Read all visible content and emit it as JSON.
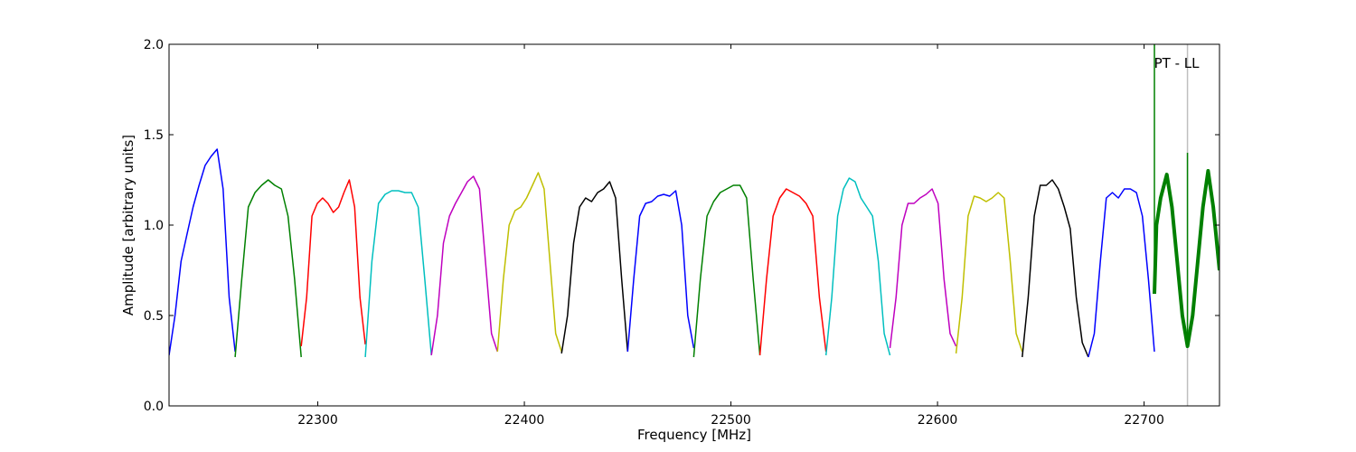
{
  "chart_data": {
    "type": "line",
    "title": "",
    "xlabel": "Frequency [MHz]",
    "ylabel": "Amplitude [arbitrary units]",
    "xlim": [
      22228,
      22736.5
    ],
    "ylim": [
      0,
      2.0
    ],
    "xticks": [
      22300,
      22400,
      22500,
      22600,
      22700
    ],
    "xtick_labels": [
      "22300",
      "22400",
      "22500",
      "22600",
      "22700"
    ],
    "yticks": [
      0,
      0.5,
      1.0,
      1.5,
      2.0
    ],
    "ytick_labels": [
      "0.0",
      "0.5",
      "1.0",
      "1.5",
      "2.0"
    ],
    "grid": false,
    "annotation": {
      "text": "PT - LL",
      "x": 22721
    },
    "bands": [
      {
        "start": 22228,
        "end": 22260,
        "color": "#0000ff",
        "values": [
          0.28,
          0.5,
          0.8,
          0.95,
          1.1,
          1.22,
          1.33,
          1.38,
          1.42,
          1.2,
          0.6,
          0.3
        ]
      },
      {
        "start": 22260,
        "end": 22292,
        "color": "#008000",
        "values": [
          0.27,
          0.7,
          1.1,
          1.18,
          1.22,
          1.25,
          1.22,
          1.2,
          1.05,
          0.7,
          0.27
        ]
      },
      {
        "start": 22292,
        "end": 22323,
        "color": "#ff0000",
        "values": [
          0.33,
          0.6,
          1.05,
          1.12,
          1.15,
          1.12,
          1.07,
          1.1,
          1.18,
          1.25,
          1.1,
          0.6,
          0.34
        ]
      },
      {
        "start": 22323,
        "end": 22355,
        "color": "#00bfbf",
        "values": [
          0.27,
          0.8,
          1.12,
          1.17,
          1.19,
          1.19,
          1.18,
          1.18,
          1.1,
          0.7,
          0.28
        ]
      },
      {
        "start": 22355,
        "end": 22387,
        "color": "#bf00bf",
        "values": [
          0.28,
          0.5,
          0.9,
          1.05,
          1.12,
          1.18,
          1.24,
          1.27,
          1.2,
          0.8,
          0.4,
          0.3
        ]
      },
      {
        "start": 22387,
        "end": 22418,
        "color": "#bfbf00",
        "values": [
          0.3,
          0.7,
          1.0,
          1.08,
          1.1,
          1.15,
          1.22,
          1.29,
          1.2,
          0.8,
          0.4,
          0.3
        ]
      },
      {
        "start": 22418,
        "end": 22450,
        "color": "#000000",
        "values": [
          0.29,
          0.5,
          0.9,
          1.1,
          1.15,
          1.13,
          1.18,
          1.2,
          1.24,
          1.15,
          0.7,
          0.3
        ]
      },
      {
        "start": 22450,
        "end": 22482,
        "color": "#0000ff",
        "values": [
          0.3,
          0.7,
          1.05,
          1.12,
          1.13,
          1.16,
          1.17,
          1.16,
          1.19,
          1.0,
          0.5,
          0.32
        ]
      },
      {
        "start": 22482,
        "end": 22514,
        "color": "#008000",
        "values": [
          0.27,
          0.7,
          1.05,
          1.13,
          1.18,
          1.2,
          1.22,
          1.22,
          1.15,
          0.7,
          0.28
        ]
      },
      {
        "start": 22514,
        "end": 22546,
        "color": "#ff0000",
        "values": [
          0.28,
          0.7,
          1.05,
          1.15,
          1.2,
          1.18,
          1.16,
          1.12,
          1.05,
          0.6,
          0.3
        ]
      },
      {
        "start": 22546,
        "end": 22577,
        "color": "#00bfbf",
        "values": [
          0.28,
          0.6,
          1.05,
          1.2,
          1.26,
          1.24,
          1.15,
          1.1,
          1.05,
          0.8,
          0.4,
          0.28
        ]
      },
      {
        "start": 22577,
        "end": 22609,
        "color": "#bf00bf",
        "values": [
          0.32,
          0.6,
          1.0,
          1.12,
          1.12,
          1.15,
          1.17,
          1.2,
          1.12,
          0.7,
          0.4,
          0.33
        ]
      },
      {
        "start": 22609,
        "end": 22641,
        "color": "#bfbf00",
        "values": [
          0.29,
          0.6,
          1.05,
          1.16,
          1.15,
          1.13,
          1.15,
          1.18,
          1.15,
          0.8,
          0.4,
          0.3
        ]
      },
      {
        "start": 22641,
        "end": 22673,
        "color": "#000000",
        "values": [
          0.27,
          0.6,
          1.05,
          1.22,
          1.22,
          1.25,
          1.2,
          1.1,
          0.98,
          0.6,
          0.35,
          0.27
        ]
      },
      {
        "start": 22673,
        "end": 22705,
        "color": "#0000ff",
        "values": [
          0.27,
          0.4,
          0.8,
          1.15,
          1.18,
          1.15,
          1.2,
          1.2,
          1.18,
          1.05,
          0.7,
          0.3
        ]
      }
    ],
    "pt_ll_series": {
      "color": "#008000",
      "x": [
        22705,
        22706,
        22708,
        22711,
        22713.5,
        22716,
        22718.5,
        22721,
        22723.5,
        22726,
        22728.5,
        22731,
        22733.5,
        22736.5
      ],
      "y": [
        0.62,
        1.0,
        1.15,
        1.28,
        1.1,
        0.8,
        0.5,
        0.33,
        0.5,
        0.8,
        1.1,
        1.3,
        1.1,
        0.75
      ]
    },
    "markers": [
      {
        "x": 22705,
        "color": "#008000",
        "from": 0.62,
        "to": 2.0
      },
      {
        "x": 22721,
        "color": "#bfbfbf",
        "from": 0,
        "to": 2.0
      },
      {
        "x": 22721,
        "color": "#008000",
        "from": 0.33,
        "to": 1.4
      }
    ]
  }
}
